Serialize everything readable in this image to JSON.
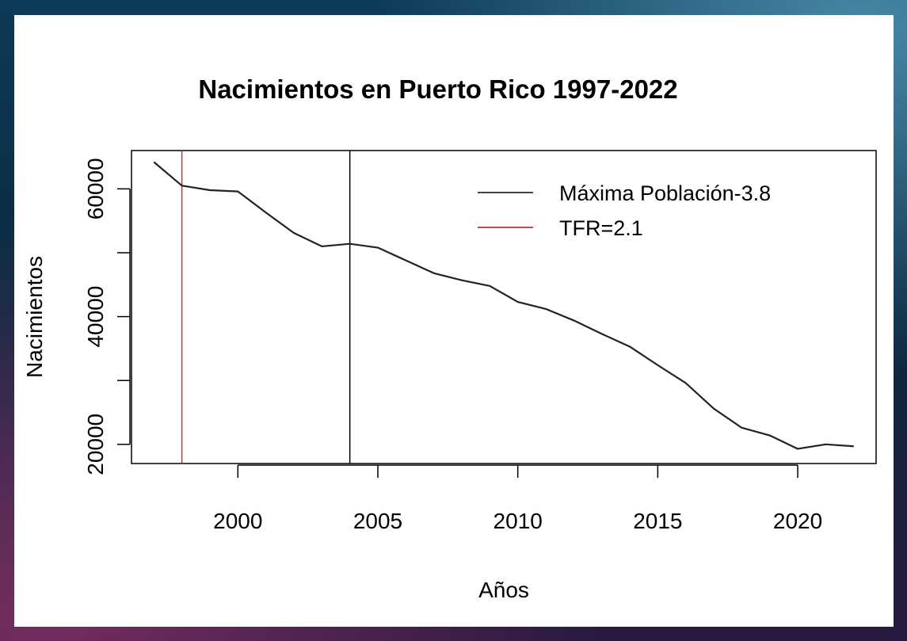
{
  "chart_data": {
    "type": "line",
    "title": "Nacimientos en Puerto Rico 1997-2022",
    "xlabel": "Años",
    "ylabel": "Nacimientos",
    "xlim": [
      1996.2,
      2022.8
    ],
    "ylim": [
      17000,
      66000
    ],
    "xticks": [
      2000,
      2005,
      2010,
      2015,
      2020
    ],
    "yticks": [
      20000,
      30000,
      40000,
      50000,
      60000
    ],
    "ytick_labels": [
      "20000",
      "",
      "40000",
      "",
      "60000"
    ],
    "x": [
      1997,
      1998,
      1999,
      2000,
      2001,
      2002,
      2003,
      2004,
      2005,
      2006,
      2007,
      2008,
      2009,
      2010,
      2011,
      2012,
      2013,
      2014,
      2015,
      2016,
      2017,
      2018,
      2019,
      2020,
      2021,
      2022
    ],
    "series": [
      {
        "name": "",
        "color": "#222222",
        "values": [
          64200,
          60500,
          59800,
          59600,
          56300,
          53100,
          51000,
          51400,
          50800,
          48800,
          46800,
          45700,
          44800,
          42300,
          41200,
          39400,
          37300,
          35300,
          32400,
          29600,
          25600,
          22600,
          21400,
          19300,
          20000,
          19700
        ]
      }
    ],
    "vlines": [
      {
        "x": 1998,
        "color": "#c0392b"
      },
      {
        "x": 2004,
        "color": "#000000"
      }
    ],
    "legend": {
      "position": "top-right",
      "items": [
        {
          "label": "Máxima Población-3.8",
          "color": "#444444"
        },
        {
          "label": "TFR=2.1",
          "color": "#d64545"
        }
      ]
    },
    "grid": false
  }
}
